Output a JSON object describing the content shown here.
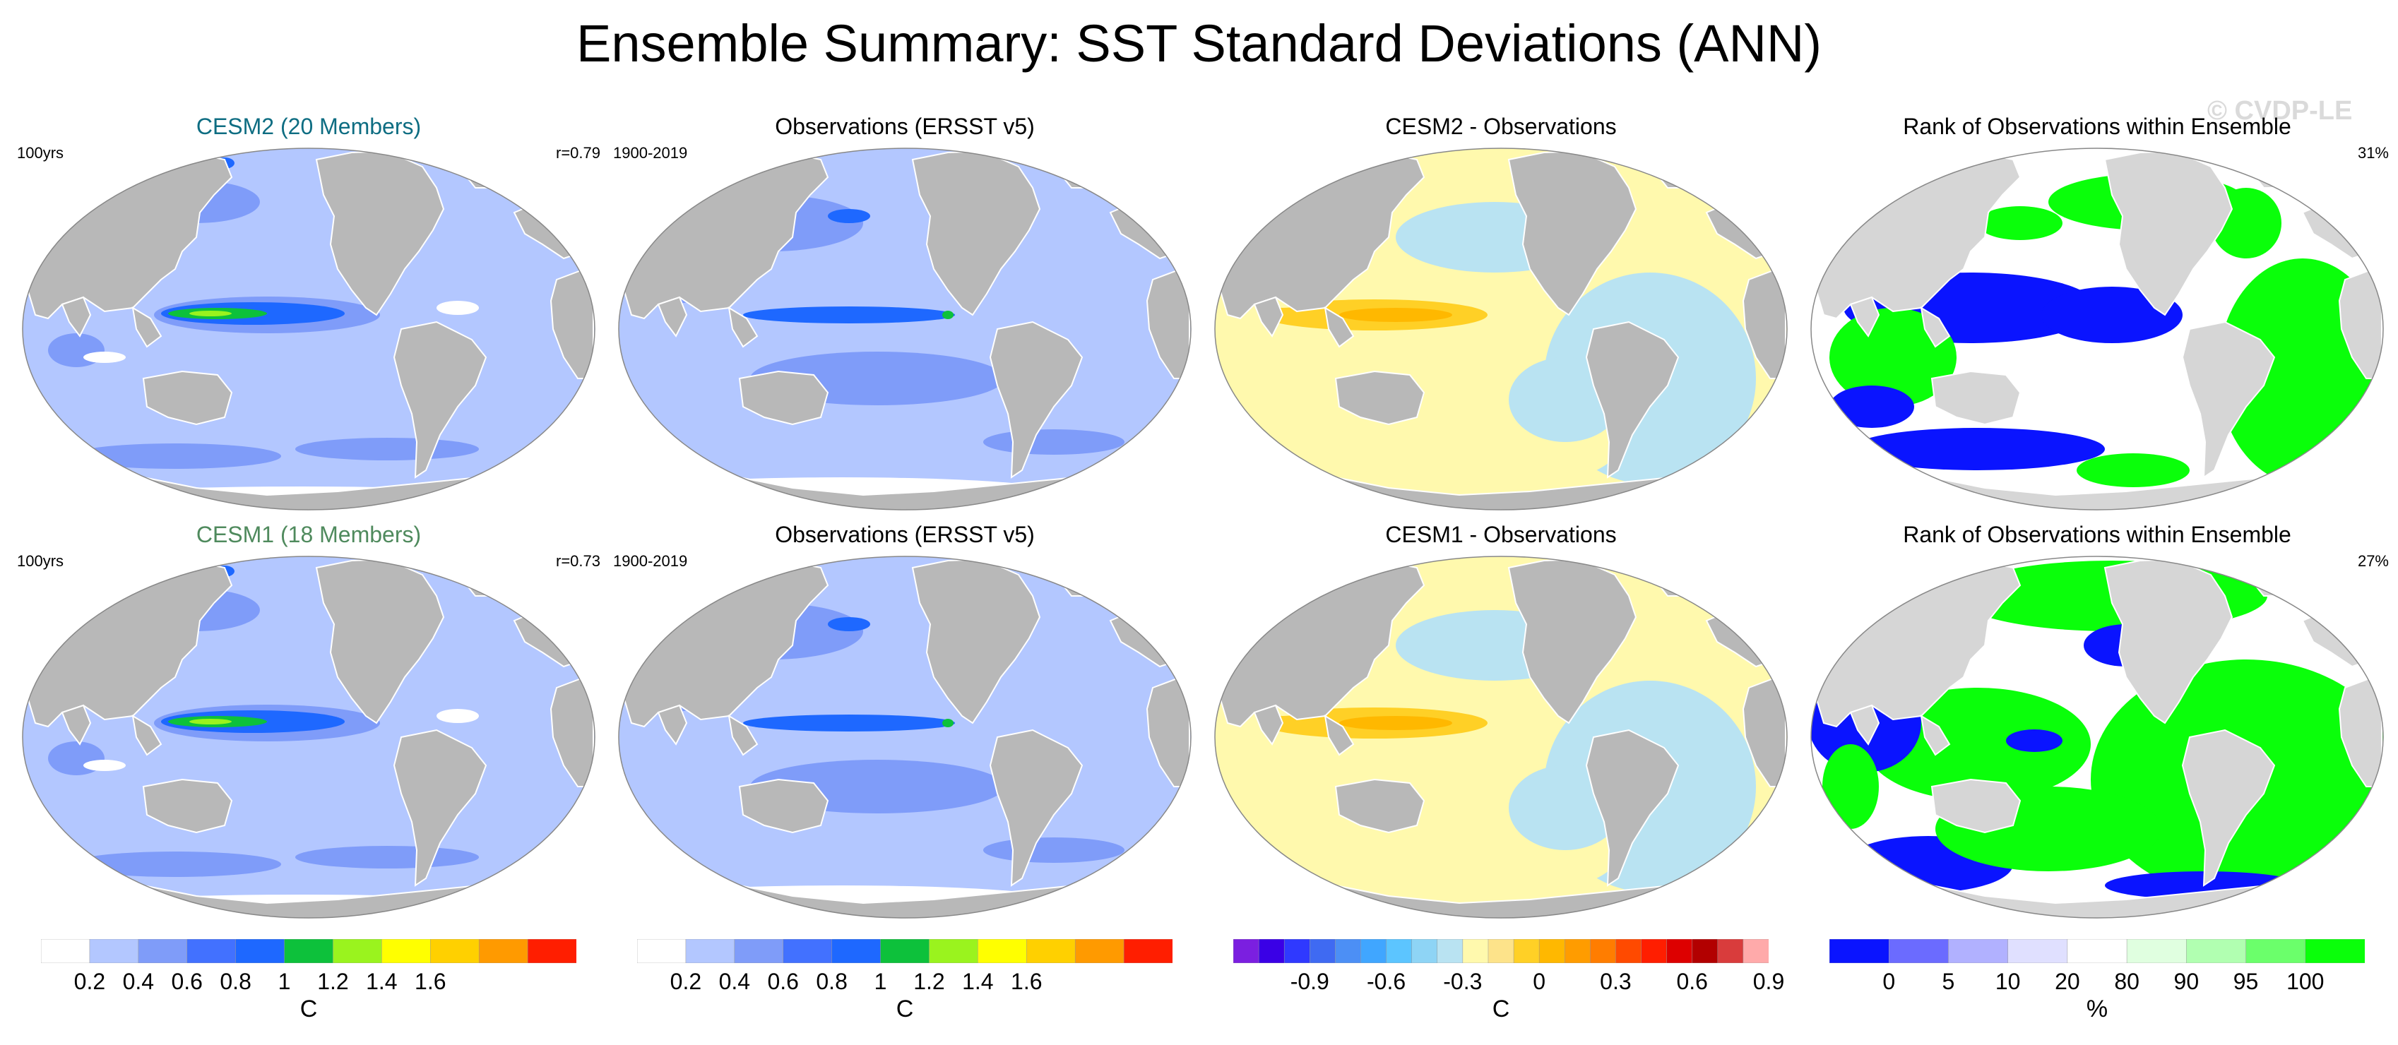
{
  "title": "Ensemble Summary: SST Standard Deviations (ANN)",
  "watermark": "© CVDP-LE",
  "colors": {
    "land": "#b8b8b8",
    "ocean_cesm2": "#0e6d82",
    "ocean_cesm1": "#4f8a5d",
    "base_blue": "#b3c7ff",
    "deep_blue": "#1e68ff",
    "white": "#ffffff"
  },
  "panels": [
    {
      "title": "CESM2 (20 Members)",
      "title_color": "#0e6d82",
      "left": "100yrs",
      "right": "r=0.79",
      "kind": "std_model"
    },
    {
      "title": "Observations (ERSST v5)",
      "title_color": "#000000",
      "left": "1900-2019",
      "right": "",
      "kind": "std_obs"
    },
    {
      "title": "CESM2 - Observations",
      "title_color": "#000000",
      "left": "",
      "right": "",
      "kind": "diff"
    },
    {
      "title": "Rank of Observations within Ensemble",
      "title_color": "#000000",
      "left": "",
      "right": "31%",
      "kind": "rank"
    },
    {
      "title": "CESM1 (18 Members)",
      "title_color": "#4f8a5d",
      "left": "100yrs",
      "right": "r=0.73",
      "kind": "std_model"
    },
    {
      "title": "Observations (ERSST v5)",
      "title_color": "#000000",
      "left": "1900-2019",
      "right": "",
      "kind": "std_obs"
    },
    {
      "title": "CESM1 - Observations",
      "title_color": "#000000",
      "left": "",
      "right": "",
      "kind": "diff"
    },
    {
      "title": "Rank of Observations within Ensemble",
      "title_color": "#000000",
      "left": "",
      "right": "27%",
      "kind": "rank"
    }
  ],
  "colorbars": [
    {
      "unit": "C",
      "colors": [
        "#ffffff",
        "#b3c7ff",
        "#7f9cf9",
        "#4271ff",
        "#1e68ff",
        "#0dc13b",
        "#9af31e",
        "#ffff00",
        "#ffd000",
        "#ff9a00",
        "#ff1e00"
      ],
      "ticks": [
        "0.2",
        "0.4",
        "0.6",
        "0.8",
        "1",
        "1.2",
        "1.4",
        "1.6"
      ]
    },
    {
      "unit": "C",
      "colors": [
        "#ffffff",
        "#b3c7ff",
        "#7f9cf9",
        "#4271ff",
        "#1e68ff",
        "#0dc13b",
        "#9af31e",
        "#ffff00",
        "#ffd000",
        "#ff9a00",
        "#ff1e00"
      ],
      "ticks": [
        "0.2",
        "0.4",
        "0.6",
        "0.8",
        "1",
        "1.2",
        "1.4",
        "1.6"
      ]
    },
    {
      "unit": "C",
      "colors": [
        "#7b1fe0",
        "#3a00e6",
        "#2f39ff",
        "#3f6af2",
        "#4c8ff5",
        "#40a6ff",
        "#5cc5ff",
        "#8ed4f5",
        "#b9e3f2",
        "#fff9ad",
        "#fde38a",
        "#ffd026",
        "#ffb800",
        "#ff9c00",
        "#ff7d00",
        "#ff4a00",
        "#ff1e00",
        "#dd0000",
        "#b20000",
        "#d93c3c",
        "#ffaaaa"
      ],
      "ticks": [
        "-0.9",
        "-0.6",
        "-0.3",
        "0",
        "0.3",
        "0.6",
        "0.9"
      ]
    },
    {
      "unit": "%",
      "colors": [
        "#0a14ff",
        "#6b6bff",
        "#b1b1ff",
        "#e0e0ff",
        "#ffffff",
        "#e0ffe0",
        "#b1ffb1",
        "#6bff6b",
        "#0aff0a"
      ],
      "ticks": [
        "0",
        "5",
        "10",
        "20",
        "80",
        "90",
        "95",
        "100"
      ]
    }
  ],
  "chart_data": {
    "type": "map_grid",
    "layout": "2 rows x 4 columns",
    "std_levels_C": [
      0.2,
      0.4,
      0.6,
      0.8,
      1.0,
      1.2,
      1.4,
      1.6
    ],
    "diff_levels_C": [
      -0.9,
      -0.6,
      -0.3,
      0,
      0.3,
      0.6,
      0.9
    ],
    "rank_levels_pct": [
      0,
      5,
      10,
      20,
      80,
      90,
      95,
      100
    ],
    "pattern_correlation": {
      "CESM2": 0.79,
      "CESM1": 0.73
    },
    "obs_rank_pct": {
      "CESM2": 31,
      "CESM1": 27
    }
  }
}
